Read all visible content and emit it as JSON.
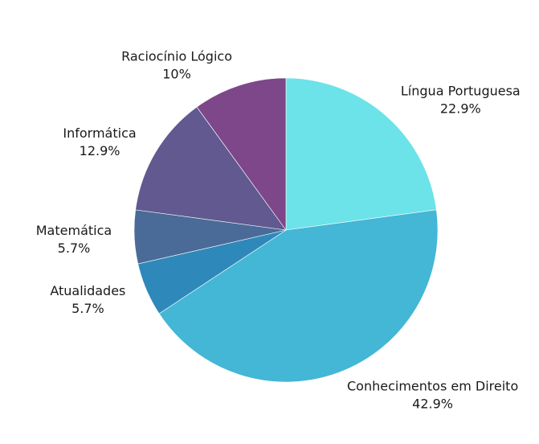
{
  "chart_data": {
    "type": "pie",
    "title": "",
    "start_angle_deg": 0,
    "direction": "clockwise",
    "slices": [
      {
        "label": "Língua Portuguesa",
        "value": 22.9,
        "value_label": "22.9%",
        "color": "#6be3e8"
      },
      {
        "label": "Conhecimentos em Direito",
        "value": 42.9,
        "value_label": "42.9%",
        "color": "#44b6d6"
      },
      {
        "label": "Atualidades",
        "value": 5.7,
        "value_label": "5.7%",
        "color": "#2e89ba"
      },
      {
        "label": "Matemática",
        "value": 5.7,
        "value_label": "5.7%",
        "color": "#4a6b98"
      },
      {
        "label": "Informática",
        "value": 12.9,
        "value_label": "12.9%",
        "color": "#615990"
      },
      {
        "label": "Raciocínio Lógico",
        "value": 10,
        "value_label": "10%",
        "color": "#7d478a"
      }
    ]
  }
}
